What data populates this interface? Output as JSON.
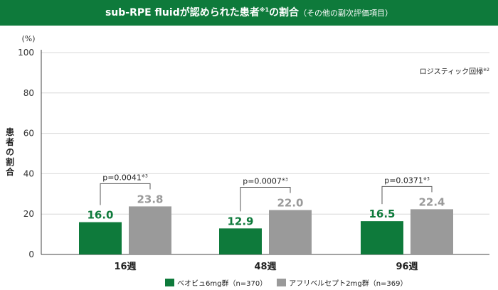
{
  "header": {
    "title_main": "sub-RPE fluidが認められた患者",
    "title_mark": "※1",
    "title_tail": "の割合",
    "title_sub": "（その他の副次評価項目）"
  },
  "colors": {
    "brodalumab": "#0e7a3b",
    "aflibercept": "#9a9a9a",
    "axis": "#444444"
  },
  "chart_data": {
    "type": "bar",
    "title": "sub-RPE fluidが認められた患者※1の割合（その他の副次評価項目）",
    "ylabel": "患者の割合",
    "yunit": "(%)",
    "ylim": [
      0,
      100
    ],
    "yticks": [
      0,
      20,
      40,
      60,
      80,
      100
    ],
    "categories": [
      "16週",
      "48週",
      "96週"
    ],
    "series": [
      {
        "name": "ベオビュ6mg群（n=370）",
        "values": [
          16.0,
          12.9,
          16.5
        ]
      },
      {
        "name": "アフリベルセプト2mg群（n=369）",
        "values": [
          23.8,
          22.0,
          22.4
        ]
      }
    ],
    "value_labels": [
      [
        "16.0",
        "12.9",
        "16.5"
      ],
      [
        "23.8",
        "22.0",
        "22.4"
      ]
    ],
    "pvalues": [
      "p=0.0041",
      "p=0.0007",
      "p=0.0371"
    ],
    "pvalue_mark": "※3",
    "annotation": "ロジスティック回帰",
    "annotation_mark": "※2"
  }
}
